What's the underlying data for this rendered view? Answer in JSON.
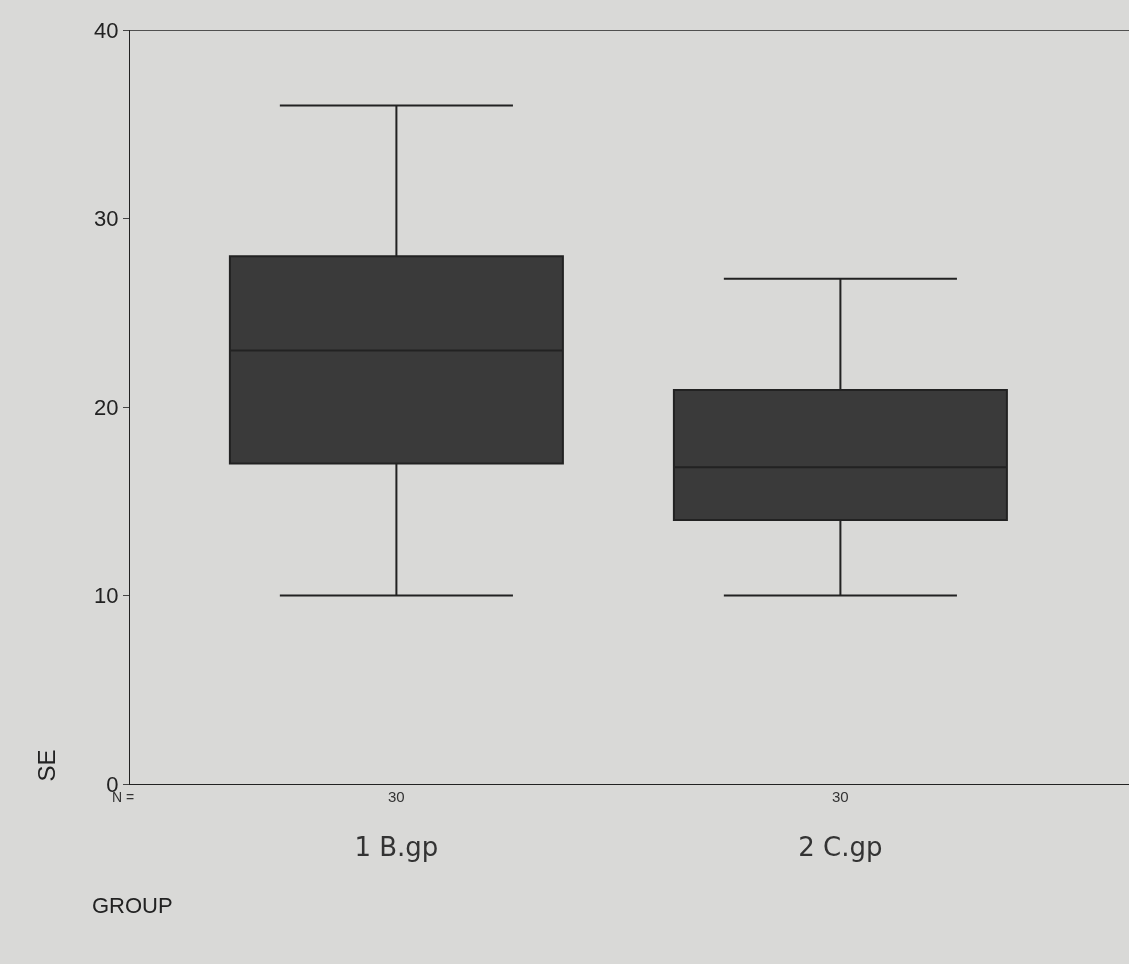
{
  "chart_data": {
    "type": "box",
    "xlabel": "GROUP",
    "ylabel": "SE",
    "categories": [
      "1 B.gp",
      "2 C.gp"
    ],
    "boxes": [
      {
        "low": 10,
        "q1": 17,
        "median": 23,
        "q3": 28,
        "high": 36
      },
      {
        "low": 10,
        "q1": 14,
        "median": 16.8,
        "q3": 20.9,
        "high": 26.8
      }
    ],
    "color": "#3a3a3a",
    "ylim": [
      0,
      40
    ],
    "yticks": [
      0,
      10,
      20,
      30,
      40
    ],
    "grid": false,
    "legend": false,
    "annotations": [
      "N =",
      "30",
      "30"
    ]
  }
}
